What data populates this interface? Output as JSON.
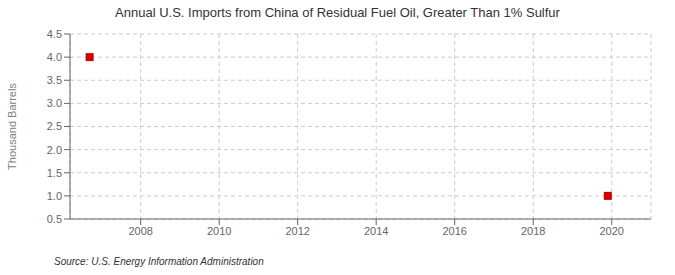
{
  "chart_data": {
    "type": "scatter",
    "title": "Annual U.S. Imports from China of Residual Fuel Oil, Greater Than 1% Sulfur",
    "ylabel": "Thousand Barrels",
    "source": "Source: U.S. Energy Information Administration",
    "x": [
      2006.7,
      2019.9
    ],
    "values": [
      4.0,
      1.0
    ],
    "color": "#CC0000",
    "marker": "square",
    "xlim": [
      2006.2,
      2021.0
    ],
    "ylim": [
      0.5,
      4.5
    ],
    "xticks": [
      2008,
      2010,
      2012,
      2014,
      2016,
      2018,
      2020
    ],
    "yticks": [
      0.5,
      {
        "value": 1.0,
        "label": "1.0"
      },
      1.5,
      {
        "value": 2.0,
        "label": "2.0"
      },
      2.5,
      {
        "value": 3.0,
        "label": "3.0"
      },
      3.5,
      {
        "value": 4.0,
        "label": "4.0"
      },
      4.5
    ],
    "grid": true
  }
}
